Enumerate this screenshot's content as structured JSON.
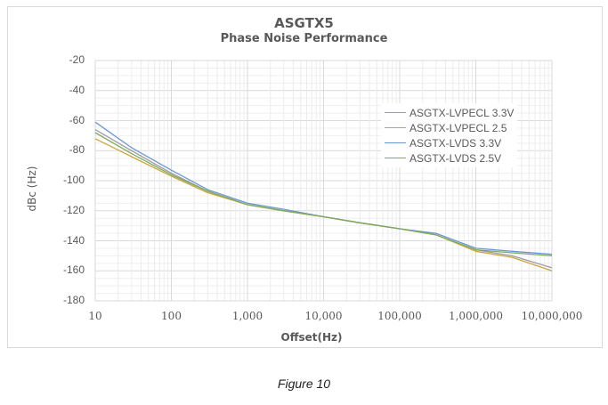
{
  "chart_data": {
    "type": "line",
    "title": "ASGTX5",
    "subtitle": "Phase Noise Performance",
    "xlabel": "Offset(Hz)",
    "ylabel": "dBc (Hz)",
    "xscale": "log",
    "xlim": [
      10,
      10000000
    ],
    "ylim": [
      -180,
      -20
    ],
    "grid": true,
    "legend_position": "upper-right-inside",
    "x_tick_labels": [
      "10",
      "100",
      "1,000",
      "10,000",
      "100,000",
      "1,000,000",
      "10,000,000"
    ],
    "y_tick_labels": [
      "-20",
      "-40",
      "-60",
      "-80",
      "-100",
      "-120",
      "-140",
      "-160",
      "-180"
    ],
    "x": [
      10,
      30,
      100,
      300,
      1000,
      3000,
      10000,
      30000,
      100000,
      300000,
      1000000,
      3000000,
      10000000
    ],
    "series": [
      {
        "name": "ASGTX-LVPECL 3.3V",
        "color": "#9e9aa6",
        "values": [
          -66,
          -80,
          -95,
          -107,
          -116,
          -120,
          -124,
          -128,
          -132,
          -136,
          -146,
          -150,
          -158
        ]
      },
      {
        "name": "ASGTX-LVPECL 2.5",
        "color": "#c9a63c",
        "values": [
          -72,
          -84,
          -97,
          -108,
          -116,
          -120,
          -124,
          -128,
          -132,
          -136,
          -147,
          -151,
          -160
        ]
      },
      {
        "name": "ASGTX-LVDS 3.3V",
        "color": "#6b97d6",
        "values": [
          -61,
          -78,
          -93,
          -106,
          -115,
          -119,
          -124,
          -128,
          -132,
          -135,
          -145,
          -147,
          -149
        ]
      },
      {
        "name": "ASGTX-LVDS 2.5V",
        "color": "#7faa5a",
        "values": [
          -68,
          -82,
          -96,
          -107,
          -116,
          -120,
          -124,
          -128,
          -132,
          -136,
          -146,
          -148,
          -150
        ]
      }
    ]
  },
  "caption": "Figure 10"
}
